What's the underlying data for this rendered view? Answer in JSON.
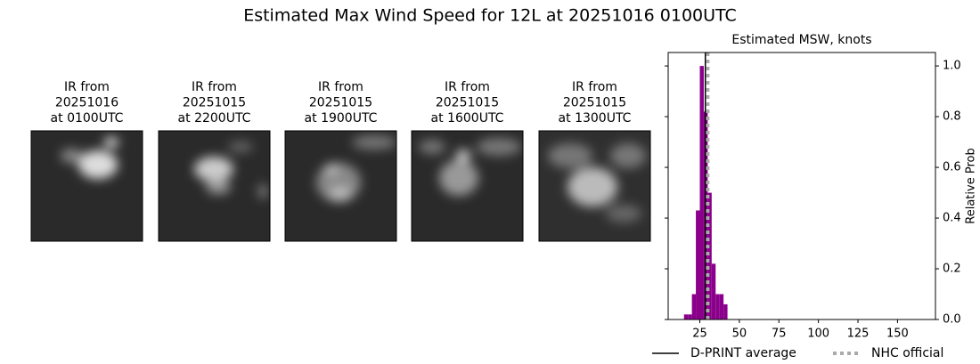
{
  "title": "Estimated Max Wind Speed for 12L at 20251016 0100UTC",
  "panels": [
    {
      "lines": [
        "IR from",
        "20251016",
        "at 0100UTC"
      ]
    },
    {
      "lines": [
        "IR from",
        "20251015",
        "at 2200UTC"
      ]
    },
    {
      "lines": [
        "IR from",
        "20251015",
        "at 1900UTC"
      ]
    },
    {
      "lines": [
        "IR from",
        "20251015",
        "at 1600UTC"
      ]
    },
    {
      "lines": [
        "IR from",
        "20251015",
        "at 1300UTC"
      ]
    }
  ],
  "chart_data": {
    "type": "histogram",
    "title": "Estimated MSW, knots",
    "ylabel": "Relative Prob",
    "bins": [
      15,
      17.5,
      20,
      22.5,
      25,
      27.5,
      30,
      32.5,
      35,
      37.5,
      40,
      42.5
    ],
    "values": [
      0.02,
      0.02,
      0.1,
      0.43,
      1.0,
      0.82,
      0.5,
      0.22,
      0.1,
      0.1,
      0.06
    ],
    "color": "#8b008b",
    "xlim": [
      5,
      174
    ],
    "ylim": [
      0,
      1.053
    ],
    "xticks": [
      25,
      50,
      75,
      100,
      125,
      150
    ],
    "yticks": [
      {
        "value": 0,
        "label": "0.0"
      },
      {
        "value": 0.2,
        "label": "0.2"
      },
      {
        "value": 0.4,
        "label": "0.4"
      },
      {
        "value": 0.6,
        "label": "0.6"
      },
      {
        "value": 0.8,
        "label": "0.8"
      },
      {
        "value": 1,
        "label": "1.0"
      }
    ],
    "reference_lines": [
      {
        "name": "D-PRINT average",
        "value": 28.5,
        "color": "#000000",
        "style": "solid"
      },
      {
        "name": "NHC official",
        "value": 30,
        "color": "#aaaaaa",
        "style": "dotted"
      }
    ]
  }
}
